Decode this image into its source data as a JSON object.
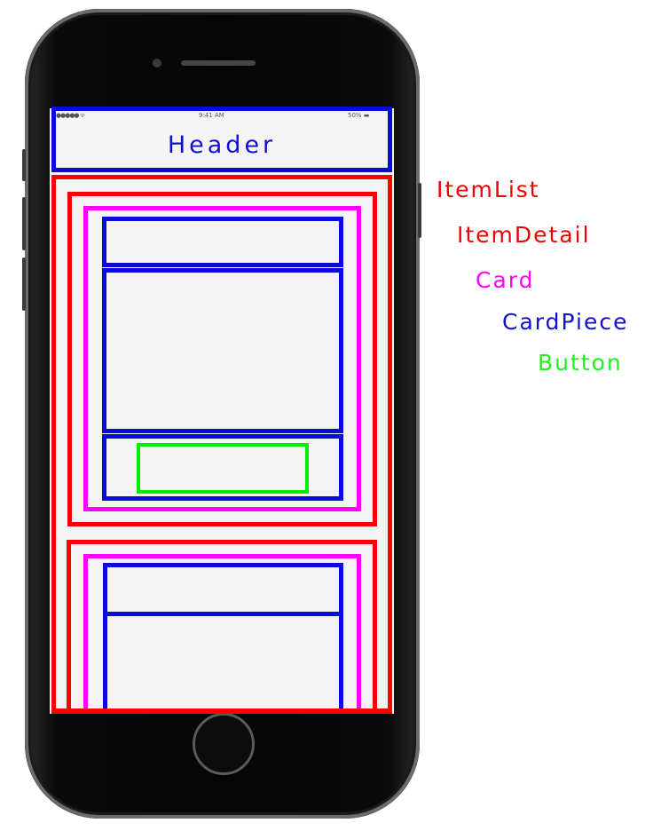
{
  "status_bar": {
    "signal": "●●●●● ᯤ",
    "time": "9:41 AM",
    "battery": "50% ▬"
  },
  "header": {
    "label": "Header"
  },
  "legend": [
    {
      "label": "ItemList",
      "color": "#ee0000"
    },
    {
      "label": "ItemDetail",
      "color": "#ee0000"
    },
    {
      "label": "Card",
      "color": "#ff00ff"
    },
    {
      "label": "CardPiece",
      "color": "#1111cc"
    },
    {
      "label": "Button",
      "color": "#22ee22"
    }
  ],
  "colors": {
    "itemlist": "#ff0000",
    "itemdetail": "#ff0000",
    "card": "#ff00ff",
    "cardpiece": "#0a0adb",
    "button": "#00ee00"
  }
}
